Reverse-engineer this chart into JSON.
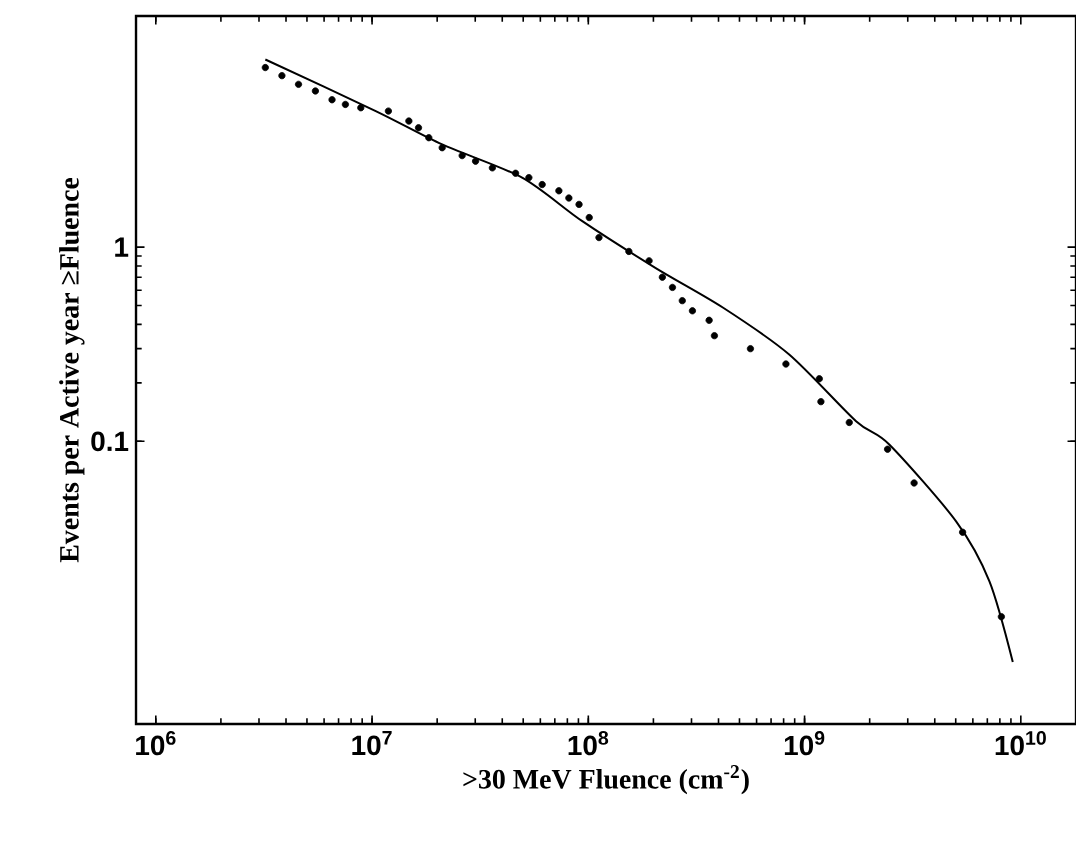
{
  "chart_data": {
    "type": "scatter",
    "xlabel": ">30 MeV Fluence (cm$^{-2}$)",
    "ylabel": "Events per Active year ≥Fluence",
    "log": "xy",
    "grid": false,
    "xlim": [
      810000.0,
      18000000000.0
    ],
    "ylim": [
      0.0035,
      15.5
    ],
    "xticks": [
      {
        "value": 1000000.0,
        "label": "10$^{6}$"
      },
      {
        "value": 10000000.0,
        "label": "10$^{7}$"
      },
      {
        "value": 100000000.0,
        "label": "10$^{8}$"
      },
      {
        "value": 1000000000.0,
        "label": "10$^{9}$"
      },
      {
        "value": 10000000000.0,
        "label": "10$^{10}$"
      }
    ],
    "yticks": [
      0.1,
      1
    ],
    "series": [
      {
        "color": "#000000",
        "marker": "circle",
        "x": [
          3210000.0,
          3830000.0,
          4570000.0,
          5470000.0,
          6530000.0,
          7530000.0,
          8870000.0,
          11900000.0,
          14800000.0,
          16400000.0,
          18300000.0,
          21100000.0,
          26100000.0,
          30100000.0,
          36000000.0,
          46100000.0,
          53100000.0,
          61200000.0,
          73100000.0,
          81300000.0,
          90600000.0,
          101000000.0,
          112000000.0,
          154000000.0,
          191000000.0,
          220000000.0,
          245000000.0,
          272000000.0,
          303000000.0,
          362000000.0,
          383000000.0,
          562000000.0,
          820000000.0,
          1170000000.0,
          1190000000.0,
          1610000000.0,
          2420000000.0,
          3210000000.0,
          5380000000.0,
          8130000000.0
        ],
        "values": [
          8.41,
          7.64,
          6.89,
          6.37,
          5.74,
          5.43,
          5.22,
          5.02,
          4.46,
          4.12,
          3.66,
          3.25,
          2.96,
          2.77,
          2.56,
          2.4,
          2.28,
          2.1,
          1.95,
          1.79,
          1.66,
          1.42,
          1.12,
          0.95,
          0.85,
          0.7,
          0.62,
          0.53,
          0.47,
          0.42,
          0.35,
          0.3,
          0.25,
          0.21,
          0.16,
          0.125,
          0.091,
          0.061,
          0.034,
          0.0125
        ]
      },
      {
        "type": "line",
        "color": "#000000",
        "marker": "none",
        "line_style": "solid",
        "x": [
          3210000.0,
          10400000.0,
          21100000.0,
          49400000.0,
          93800000.0,
          205000000.0,
          417000000.0,
          849000000.0,
          1730000000.0,
          2470000000.0,
          5020000000.0,
          7160000000.0,
          9180000000.0
        ],
        "values": [
          9.25,
          5.02,
          3.38,
          2.28,
          1.36,
          0.78,
          0.49,
          0.28,
          0.127,
          0.096,
          0.0387,
          0.019,
          0.0073
        ]
      }
    ]
  }
}
